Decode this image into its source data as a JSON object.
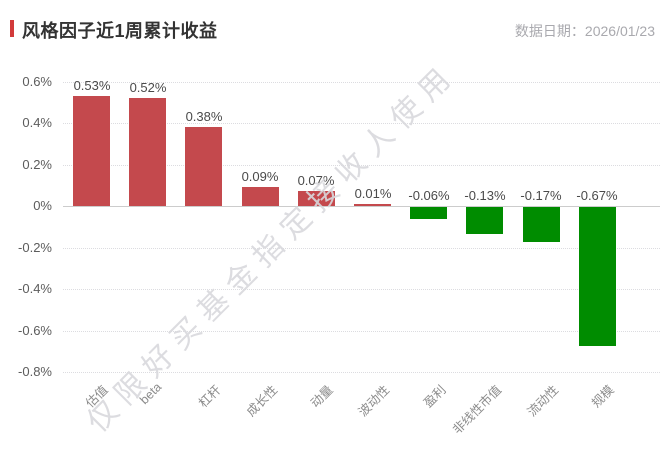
{
  "header": {
    "title": "风格因子近1周累计收益",
    "date_label": "数据日期：2026/01/23"
  },
  "watermark": {
    "text": "仅限好买基金指定接收人使用"
  },
  "colors": {
    "positive_bar": "#c4494d",
    "negative_bar": "#008c00",
    "title_accent": "#d23a3a",
    "grid": "#dcdce0",
    "zero_axis": "#cccccc"
  },
  "chart_data": {
    "type": "bar",
    "title": "风格因子近1周累计收益",
    "categories": [
      "估值",
      "beta",
      "杠杆",
      "成长性",
      "动量",
      "波动性",
      "盈利",
      "非线性市值",
      "流动性",
      "规模"
    ],
    "values": [
      0.53,
      0.52,
      0.38,
      0.09,
      0.07,
      0.01,
      -0.06,
      -0.13,
      -0.17,
      -0.67
    ],
    "value_labels": [
      "0.53%",
      "0.52%",
      "0.38%",
      "0.09%",
      "0.07%",
      "0.01%",
      "-0.06%",
      "-0.13%",
      "-0.17%",
      "-0.67%"
    ],
    "xlabel": "",
    "ylabel": "",
    "ylim": [
      -0.8,
      0.6
    ],
    "yticks": [
      0.6,
      0.4,
      0.2,
      0,
      -0.2,
      -0.4,
      -0.6,
      -0.8
    ],
    "ytick_labels": [
      "0.6%",
      "0.4%",
      "0.2%",
      "0%",
      "-0.2%",
      "-0.4%",
      "-0.6%",
      "-0.8%"
    ],
    "grid": "horizontal-dotted",
    "legend": "none",
    "positive_color": "#c4494d",
    "negative_color": "#008c00"
  }
}
